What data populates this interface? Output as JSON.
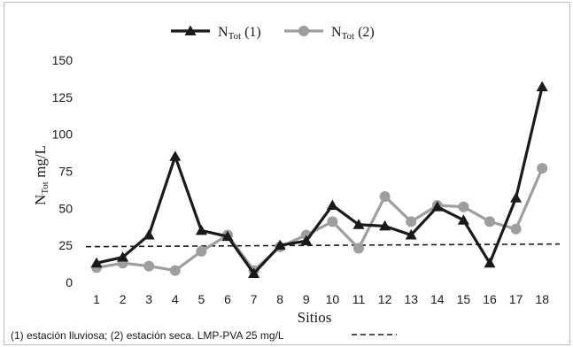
{
  "chart_data": {
    "type": "line",
    "x": [
      "1",
      "2",
      "3",
      "4",
      "5",
      "6",
      "7",
      "8",
      "9",
      "10",
      "11",
      "12",
      "13",
      "14",
      "15",
      "16",
      "17",
      "18"
    ],
    "series": [
      {
        "name": "N",
        "name_sub": "Tot",
        "name_suffix": " (1)",
        "color": "#1a1a1a",
        "marker": "triangle",
        "values": [
          13,
          17,
          32,
          85,
          35,
          31,
          6,
          25,
          28,
          52,
          39,
          38,
          32,
          51,
          42,
          13,
          57,
          132
        ]
      },
      {
        "name": "N",
        "name_sub": "Tot",
        "name_suffix": " (2)",
        "color": "#9e9e9e",
        "marker": "circle",
        "values": [
          10,
          13,
          11,
          8,
          21,
          32,
          8,
          24,
          32,
          41,
          23,
          58,
          41,
          52,
          51,
          41,
          36,
          77
        ]
      }
    ],
    "reference_line": {
      "value": 25,
      "style": "dashed",
      "color": "#1a1a1a"
    },
    "yticks": [
      0,
      25,
      50,
      75,
      100,
      125,
      150
    ],
    "ylim": [
      0,
      150
    ],
    "xlabel": "Sitios",
    "ylabel": {
      "main": "N",
      "sub": "Tot",
      "rest": " mg/L"
    },
    "legend_position": "top-center",
    "note": "(1) estación lluviosa; (2) estación seca. LMP-PVA 25 mg/L",
    "grid": false
  }
}
